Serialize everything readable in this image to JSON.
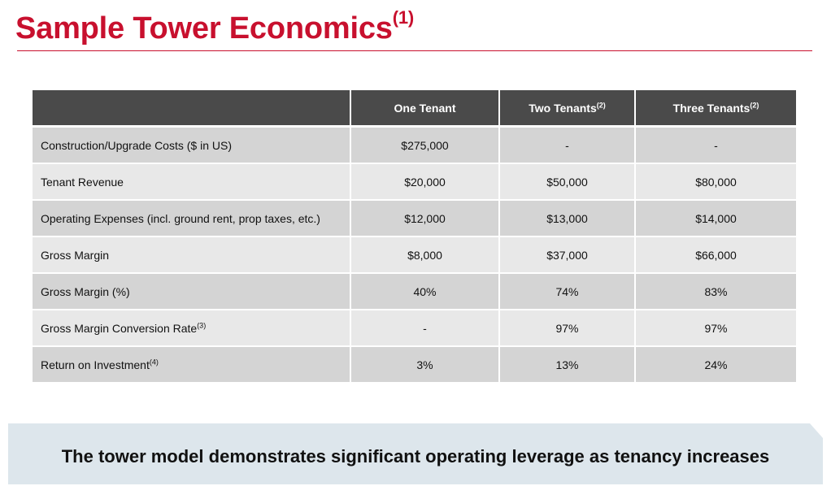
{
  "title": {
    "text": "Sample Tower Economics",
    "footnote": "(1)"
  },
  "table": {
    "headers": [
      {
        "label": "",
        "footnote": ""
      },
      {
        "label": "One Tenant",
        "footnote": ""
      },
      {
        "label": "Two Tenants",
        "footnote": "(2)"
      },
      {
        "label": "Three Tenants",
        "footnote": "(2)"
      }
    ],
    "rows": [
      {
        "label": "Construction/Upgrade Costs ($ in US)",
        "footnote": "",
        "values": [
          "$275,000",
          "-",
          "-"
        ]
      },
      {
        "label": "Tenant Revenue",
        "footnote": "",
        "values": [
          "$20,000",
          "$50,000",
          "$80,000"
        ]
      },
      {
        "label": "Operating Expenses (incl. ground rent, prop taxes, etc.)",
        "footnote": "",
        "values": [
          "$12,000",
          "$13,000",
          "$14,000"
        ]
      },
      {
        "label": "Gross Margin",
        "footnote": "",
        "values": [
          "$8,000",
          "$37,000",
          "$66,000"
        ]
      },
      {
        "label": "Gross Margin (%)",
        "footnote": "",
        "values": [
          "40%",
          "74%",
          "83%"
        ]
      },
      {
        "label": "Gross Margin Conversion Rate",
        "footnote": "(3)",
        "values": [
          "-",
          "97%",
          "97%"
        ]
      },
      {
        "label": "Return on Investment",
        "footnote": "(4)",
        "values": [
          "3%",
          "13%",
          "24%"
        ]
      }
    ]
  },
  "banner": {
    "text": "The tower model demonstrates significant operating leverage as tenancy increases"
  },
  "colors": {
    "accent": "#c8102e",
    "header_bg": "#4a4a4a",
    "row_dark": "#d4d4d4",
    "row_light": "#e8e8e8",
    "banner_bg": "#dde6ec"
  }
}
